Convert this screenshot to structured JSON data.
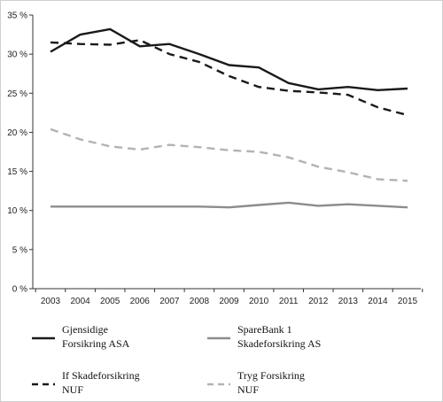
{
  "chart_data": {
    "type": "line",
    "x": [
      "2003",
      "2004",
      "2005",
      "2006",
      "2007",
      "2008",
      "2009",
      "2010",
      "2011",
      "2012",
      "2013",
      "2014",
      "2015"
    ],
    "ylim": [
      0,
      35
    ],
    "yticks": [
      "0 %",
      "5 %",
      "10 %",
      "15 %",
      "20 %",
      "25 %",
      "30 %",
      "35 %"
    ],
    "grid": false,
    "legend_position": "bottom",
    "series": [
      {
        "name": "Gjensidige Forsikring ASA",
        "legend_lines": [
          "Gjensidige",
          "Forsikring  ASA"
        ],
        "color": "#1a1a1a",
        "style": "solid",
        "values": [
          30.3,
          32.5,
          33.2,
          31.0,
          31.3,
          30.0,
          28.6,
          28.3,
          26.3,
          25.5,
          25.8,
          25.4,
          25.6
        ]
      },
      {
        "name": "If Skadeforsikring NUF",
        "legend_lines": [
          "If  Skadeforsikring",
          "NUF"
        ],
        "color": "#1a1a1a",
        "style": "dashed",
        "values": [
          31.5,
          31.3,
          31.2,
          31.8,
          30.0,
          29.0,
          27.2,
          25.8,
          25.3,
          25.1,
          24.8,
          23.2,
          22.2
        ]
      },
      {
        "name": "SpareBank 1 Skadeforsikring AS",
        "legend_lines": [
          "SpareBank   1",
          "Skadeforsikring   AS"
        ],
        "color": "#8c8c8c",
        "style": "solid",
        "values": [
          10.5,
          10.5,
          10.5,
          10.5,
          10.5,
          10.5,
          10.4,
          10.7,
          11.0,
          10.6,
          10.8,
          10.6,
          10.4
        ]
      },
      {
        "name": "Tryg Forsikring NUF",
        "legend_lines": [
          "Tryg  Forsikring",
          "NUF"
        ],
        "color": "#b3b3b3",
        "style": "dashed",
        "values": [
          20.4,
          19.1,
          18.2,
          17.8,
          18.4,
          18.1,
          17.7,
          17.5,
          16.8,
          15.6,
          14.9,
          14.0,
          13.8
        ]
      }
    ]
  }
}
